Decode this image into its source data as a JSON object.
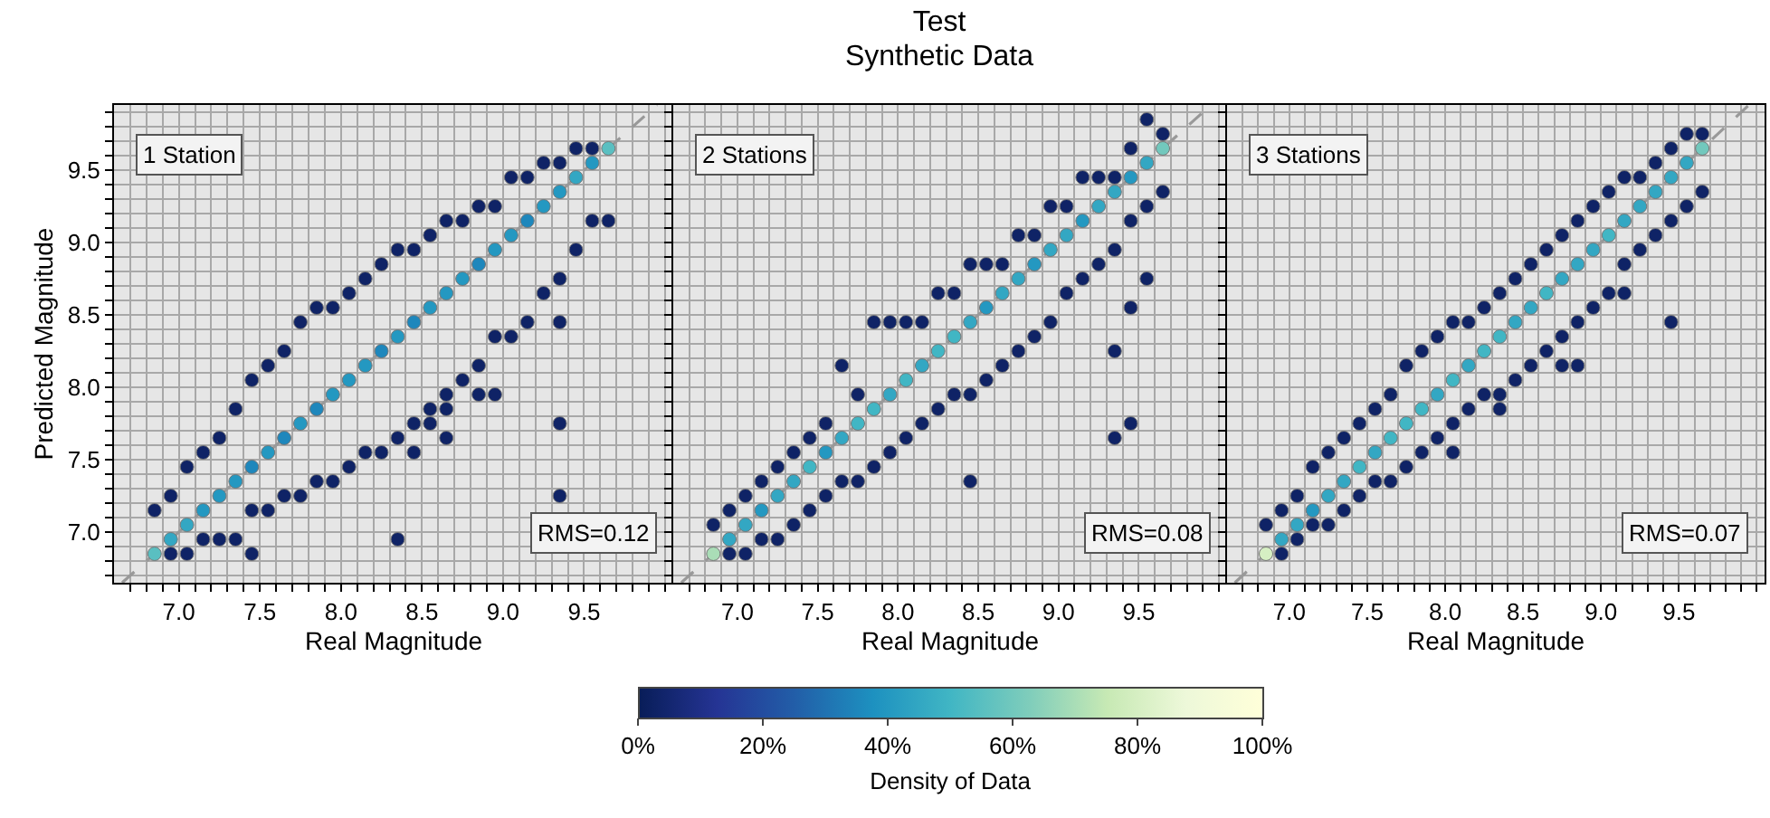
{
  "chart_data": [
    {
      "type": "scatter",
      "xlabel": "Real Magnitude",
      "ylabel": "Predicted Magnitude",
      "annotations": [
        "1 Station",
        "RMS=0.12"
      ],
      "grid": true,
      "marker": "circle",
      "xlim": [
        6.6,
        10.05
      ],
      "ylim": [
        6.65,
        9.95
      ],
      "xticks": [
        {
          "value": 6.7,
          "label": null
        },
        {
          "value": 6.8,
          "label": null
        },
        {
          "value": 6.9,
          "label": null
        },
        {
          "value": 7,
          "label": "7.0"
        },
        {
          "value": 7.1,
          "label": null
        },
        {
          "value": 7.2,
          "label": null
        },
        {
          "value": 7.3,
          "label": null
        },
        {
          "value": 7.4,
          "label": null
        },
        7.5,
        {
          "value": 7.6,
          "label": null
        },
        {
          "value": 7.7,
          "label": null
        },
        {
          "value": 7.8,
          "label": null
        },
        {
          "value": 7.9,
          "label": null
        },
        {
          "value": 8,
          "label": "8.0"
        },
        {
          "value": 8.1,
          "label": null
        },
        {
          "value": 8.2,
          "label": null
        },
        {
          "value": 8.3,
          "label": null
        },
        {
          "value": 8.4,
          "label": null
        },
        8.5,
        {
          "value": 8.6,
          "label": null
        },
        {
          "value": 8.7,
          "label": null
        },
        {
          "value": 8.8,
          "label": null
        },
        {
          "value": 8.9,
          "label": null
        },
        {
          "value": 9,
          "label": "9.0"
        },
        {
          "value": 9.1,
          "label": null
        },
        {
          "value": 9.2,
          "label": null
        },
        {
          "value": 9.3,
          "label": null
        },
        {
          "value": 9.4,
          "label": null
        },
        9.5,
        {
          "value": 9.6,
          "label": null
        },
        {
          "value": 9.7,
          "label": null
        },
        {
          "value": 9.8,
          "label": null
        },
        {
          "value": 9.9,
          "label": null
        },
        {
          "value": 10,
          "label": null
        }
      ],
      "yticks": [
        {
          "value": 6.7,
          "label": null
        },
        {
          "value": 6.8,
          "label": null
        },
        {
          "value": 6.9,
          "label": null
        },
        {
          "value": 7,
          "label": "7.0"
        },
        {
          "value": 7.1,
          "label": null
        },
        {
          "value": 7.2,
          "label": null
        },
        {
          "value": 7.3,
          "label": null
        },
        {
          "value": 7.4,
          "label": null
        },
        7.5,
        {
          "value": 7.6,
          "label": null
        },
        {
          "value": 7.7,
          "label": null
        },
        {
          "value": 7.8,
          "label": null
        },
        {
          "value": 7.9,
          "label": null
        },
        {
          "value": 8,
          "label": "8.0"
        },
        {
          "value": 8.1,
          "label": null
        },
        {
          "value": 8.2,
          "label": null
        },
        {
          "value": 8.3,
          "label": null
        },
        {
          "value": 8.4,
          "label": null
        },
        8.5,
        {
          "value": 8.6,
          "label": null
        },
        {
          "value": 8.7,
          "label": null
        },
        {
          "value": 8.8,
          "label": null
        },
        {
          "value": 8.9,
          "label": null
        },
        {
          "value": 9,
          "label": "9.0"
        },
        {
          "value": 9.1,
          "label": null
        },
        {
          "value": 9.2,
          "label": null
        },
        {
          "value": 9.3,
          "label": null
        },
        {
          "value": 9.4,
          "label": null
        },
        9.5,
        {
          "value": 9.6,
          "label": null
        },
        {
          "value": 9.7,
          "label": null
        },
        {
          "value": 9.8,
          "label": null
        },
        {
          "value": 9.9,
          "label": null
        }
      ],
      "x": [
        6.85,
        6.95,
        7.05,
        7.15,
        7.25,
        7.35,
        7.45,
        7.55,
        7.65,
        7.75,
        7.85,
        7.95,
        8.05,
        8.15,
        8.25,
        8.35,
        8.45,
        8.55,
        8.65,
        8.75,
        8.85,
        8.95,
        9.05,
        9.15,
        9.25,
        9.35,
        9.45,
        9.55,
        9.65
      ],
      "series": [
        {
          "type": "line",
          "x": [
            6.65,
            9.95
          ],
          "values": [
            6.65,
            9.95
          ],
          "color": "#999999",
          "line_style": "dashed",
          "marker": "none"
        },
        {
          "values": [
            7.15,
            7.25,
            7.45,
            7.55,
            7.65,
            7.85,
            8.05,
            8.15,
            8.25,
            8.45,
            8.55,
            8.55,
            8.65,
            8.75,
            8.85,
            8.95,
            8.95,
            9.05,
            9.15,
            9.15,
            9.25,
            9.25,
            9.45,
            9.45,
            9.55,
            9.55,
            9.65,
            9.65,
            null
          ],
          "color": "#0f2366"
        },
        {
          "values": [
            null,
            6.85,
            6.85,
            6.95,
            6.95,
            6.95,
            7.15,
            7.15,
            7.25,
            7.25,
            7.35,
            7.35,
            7.45,
            7.55,
            7.55,
            7.65,
            7.75,
            7.85,
            7.95,
            8.05,
            8.15,
            8.35,
            8.35,
            8.45,
            8.65,
            8.75,
            8.95,
            9.15,
            9.15
          ],
          "color": "#0f2366"
        },
        {
          "values": [
            6.85,
            6.95,
            7.05,
            7.15,
            7.25,
            7.35,
            7.45,
            7.55,
            7.65,
            7.75,
            7.85,
            7.95,
            8.05,
            8.15,
            8.25,
            8.35,
            8.45,
            8.55,
            8.65,
            8.75,
            8.85,
            8.95,
            9.05,
            9.15,
            9.25,
            9.35,
            9.45,
            9.55,
            9.65
          ],
          "colors": [
            "#5abfc1",
            "#33a7c3",
            "#33a7c3",
            "#2498c1",
            "#2498c1",
            "#2498c1",
            "#1e87bc",
            "#2498c1",
            "#1e87bc",
            "#2498c1",
            "#1e87bc",
            "#2498c1",
            "#2498c1",
            "#2498c1",
            "#1e87bc",
            "#2498c1",
            "#1e87bc",
            "#2498c1",
            "#2498c1",
            "#2498c1",
            "#1e87bc",
            "#2498c1",
            "#2498c1",
            "#1e87bc",
            "#2498c1",
            "#2498c1",
            "#33a7c3",
            "#2498c1",
            "#5abfc1"
          ]
        },
        {
          "x": [
            7.45,
            8.35,
            8.45,
            8.55,
            8.65,
            8.65,
            8.85,
            8.95,
            9.35,
            9.35,
            9.35
          ],
          "values": [
            6.85,
            6.95,
            7.55,
            7.75,
            7.65,
            7.85,
            7.95,
            7.95,
            7.75,
            7.25,
            8.45
          ],
          "color": "#0f2366"
        }
      ]
    },
    {
      "type": "scatter",
      "title": "Test",
      "subtitle": "Synthetic Data",
      "xlabel": "Real Magnitude",
      "annotations": [
        "2 Stations",
        "RMS=0.08"
      ],
      "grid": true,
      "marker": "circle",
      "tick_labels": "x",
      "clabel": "Density of Data",
      "clim": [
        0,
        100
      ],
      "cticks": [
        {
          "value": 0,
          "label": "0%"
        },
        {
          "value": 20,
          "label": "20%"
        },
        {
          "value": 40,
          "label": "40%"
        },
        {
          "value": 60,
          "label": "60%"
        },
        {
          "value": 80,
          "label": "80%"
        },
        {
          "value": 100,
          "label": "100%"
        }
      ],
      "xlim": [
        6.6,
        10.05
      ],
      "ylim": [
        6.65,
        9.95
      ],
      "xticks": [
        {
          "value": 6.7,
          "label": null
        },
        {
          "value": 6.8,
          "label": null
        },
        {
          "value": 6.9,
          "label": null
        },
        {
          "value": 7,
          "label": "7.0"
        },
        {
          "value": 7.1,
          "label": null
        },
        {
          "value": 7.2,
          "label": null
        },
        {
          "value": 7.3,
          "label": null
        },
        {
          "value": 7.4,
          "label": null
        },
        7.5,
        {
          "value": 7.6,
          "label": null
        },
        {
          "value": 7.7,
          "label": null
        },
        {
          "value": 7.8,
          "label": null
        },
        {
          "value": 7.9,
          "label": null
        },
        {
          "value": 8,
          "label": "8.0"
        },
        {
          "value": 8.1,
          "label": null
        },
        {
          "value": 8.2,
          "label": null
        },
        {
          "value": 8.3,
          "label": null
        },
        {
          "value": 8.4,
          "label": null
        },
        8.5,
        {
          "value": 8.6,
          "label": null
        },
        {
          "value": 8.7,
          "label": null
        },
        {
          "value": 8.8,
          "label": null
        },
        {
          "value": 8.9,
          "label": null
        },
        {
          "value": 9,
          "label": "9.0"
        },
        {
          "value": 9.1,
          "label": null
        },
        {
          "value": 9.2,
          "label": null
        },
        {
          "value": 9.3,
          "label": null
        },
        {
          "value": 9.4,
          "label": null
        },
        9.5,
        {
          "value": 9.6,
          "label": null
        },
        {
          "value": 9.7,
          "label": null
        },
        {
          "value": 9.8,
          "label": null
        },
        {
          "value": 9.9,
          "label": null
        },
        {
          "value": 10,
          "label": null
        }
      ],
      "yticks": [
        {
          "value": 6.7,
          "label": null
        },
        {
          "value": 6.8,
          "label": null
        },
        {
          "value": 6.9,
          "label": null
        },
        {
          "value": 7,
          "label": null
        },
        {
          "value": 7.1,
          "label": null
        },
        {
          "value": 7.2,
          "label": null
        },
        {
          "value": 7.3,
          "label": null
        },
        {
          "value": 7.4,
          "label": null
        },
        {
          "value": 7.5,
          "label": null
        },
        {
          "value": 7.6,
          "label": null
        },
        {
          "value": 7.7,
          "label": null
        },
        {
          "value": 7.8,
          "label": null
        },
        {
          "value": 7.9,
          "label": null
        },
        {
          "value": 8,
          "label": null
        },
        {
          "value": 8.1,
          "label": null
        },
        {
          "value": 8.2,
          "label": null
        },
        {
          "value": 8.3,
          "label": null
        },
        {
          "value": 8.4,
          "label": null
        },
        {
          "value": 8.5,
          "label": null
        },
        {
          "value": 8.6,
          "label": null
        },
        {
          "value": 8.7,
          "label": null
        },
        {
          "value": 8.8,
          "label": null
        },
        {
          "value": 8.9,
          "label": null
        },
        {
          "value": 9,
          "label": null
        },
        {
          "value": 9.1,
          "label": null
        },
        {
          "value": 9.2,
          "label": null
        },
        {
          "value": 9.3,
          "label": null
        },
        {
          "value": 9.4,
          "label": null
        },
        {
          "value": 9.5,
          "label": null
        },
        {
          "value": 9.6,
          "label": null
        },
        {
          "value": 9.7,
          "label": null
        },
        {
          "value": 9.8,
          "label": null
        },
        {
          "value": 9.9,
          "label": null
        }
      ],
      "x": [
        6.85,
        6.95,
        7.05,
        7.15,
        7.25,
        7.35,
        7.45,
        7.55,
        7.65,
        7.75,
        7.85,
        7.95,
        8.05,
        8.15,
        8.25,
        8.35,
        8.45,
        8.55,
        8.65,
        8.75,
        8.85,
        8.95,
        9.05,
        9.15,
        9.25,
        9.35,
        9.45,
        9.55,
        9.65
      ],
      "series": [
        {
          "type": "line",
          "x": [
            6.65,
            9.95
          ],
          "values": [
            6.65,
            9.95
          ],
          "color": "#999999",
          "line_style": "dashed",
          "marker": "none"
        },
        {
          "values": [
            7.05,
            7.15,
            7.25,
            7.35,
            7.45,
            7.55,
            7.65,
            7.75,
            8.15,
            7.95,
            8.45,
            8.45,
            8.45,
            8.45,
            8.65,
            8.65,
            8.85,
            8.85,
            8.85,
            9.05,
            9.05,
            9.25,
            9.25,
            9.45,
            9.45,
            9.45,
            9.65,
            9.85,
            9.75
          ],
          "cvalues": [
            3,
            3,
            3,
            3,
            3,
            3,
            3,
            3,
            3,
            3,
            3,
            3,
            3,
            3,
            3,
            3,
            3,
            3,
            3,
            3,
            3,
            3,
            3,
            3,
            3,
            3,
            3,
            3,
            3
          ]
        },
        {
          "values": [
            null,
            6.85,
            6.85,
            6.95,
            6.95,
            7.05,
            7.15,
            7.25,
            7.35,
            7.35,
            7.45,
            7.55,
            7.65,
            7.75,
            7.85,
            7.95,
            7.95,
            8.05,
            8.15,
            8.25,
            8.35,
            8.45,
            8.65,
            8.75,
            8.85,
            8.95,
            9.15,
            9.25,
            9.35
          ],
          "cvalues": [
            null,
            3,
            3,
            3,
            3,
            3,
            3,
            3,
            3,
            3,
            3,
            3,
            3,
            3,
            3,
            3,
            3,
            3,
            3,
            3,
            3,
            3,
            3,
            3,
            3,
            3,
            3,
            3,
            3
          ]
        },
        {
          "values": [
            6.85,
            6.95,
            7.05,
            7.15,
            7.25,
            7.35,
            7.45,
            7.55,
            7.65,
            7.75,
            7.85,
            7.95,
            8.05,
            8.15,
            8.25,
            8.35,
            8.45,
            8.55,
            8.65,
            8.75,
            8.85,
            8.95,
            9.05,
            9.15,
            9.25,
            9.35,
            9.45,
            9.55,
            9.65
          ],
          "colors": [
            "#aaddb7",
            "#33a7c3",
            "#33a7c3",
            "#2498c1",
            "#33a7c3",
            "#33a7c3",
            "#41b6c4",
            "#2498c1",
            "#33a7c3",
            "#41b6c4",
            "#41b6c4",
            "#33a7c3",
            "#41b6c4",
            "#33a7c3",
            "#41b6c4",
            "#41b6c4",
            "#33a7c3",
            "#2498c1",
            "#33a7c3",
            "#33a7c3",
            "#2498c1",
            "#33a7c3",
            "#33a7c3",
            "#2498c1",
            "#33a7c3",
            "#33a7c3",
            "#2498c1",
            "#33a7c3",
            "#72c8bd"
          ]
        },
        {
          "x": [
            8.45,
            9.35,
            9.45,
            9.35,
            9.45,
            9.55
          ],
          "values": [
            7.35,
            7.65,
            7.75,
            8.25,
            8.55,
            8.75
          ],
          "cvalues": [
            3,
            3,
            3,
            3,
            3,
            3
          ]
        }
      ]
    },
    {
      "type": "scatter",
      "xlabel": "Real Magnitude",
      "annotations": [
        "3 Stations",
        "RMS=0.07"
      ],
      "grid": true,
      "marker": "circle",
      "tick_labels": "x",
      "xlim": [
        6.6,
        10.05
      ],
      "ylim": [
        6.65,
        9.95
      ],
      "xticks": [
        {
          "value": 6.7,
          "label": null
        },
        {
          "value": 6.8,
          "label": null
        },
        {
          "value": 6.9,
          "label": null
        },
        {
          "value": 7,
          "label": "7.0"
        },
        {
          "value": 7.1,
          "label": null
        },
        {
          "value": 7.2,
          "label": null
        },
        {
          "value": 7.3,
          "label": null
        },
        {
          "value": 7.4,
          "label": null
        },
        7.5,
        {
          "value": 7.6,
          "label": null
        },
        {
          "value": 7.7,
          "label": null
        },
        {
          "value": 7.8,
          "label": null
        },
        {
          "value": 7.9,
          "label": null
        },
        {
          "value": 8,
          "label": "8.0"
        },
        {
          "value": 8.1,
          "label": null
        },
        {
          "value": 8.2,
          "label": null
        },
        {
          "value": 8.3,
          "label": null
        },
        {
          "value": 8.4,
          "label": null
        },
        8.5,
        {
          "value": 8.6,
          "label": null
        },
        {
          "value": 8.7,
          "label": null
        },
        {
          "value": 8.8,
          "label": null
        },
        {
          "value": 8.9,
          "label": null
        },
        {
          "value": 9,
          "label": "9.0"
        },
        {
          "value": 9.1,
          "label": null
        },
        {
          "value": 9.2,
          "label": null
        },
        {
          "value": 9.3,
          "label": null
        },
        {
          "value": 9.4,
          "label": null
        },
        9.5,
        {
          "value": 9.6,
          "label": null
        },
        {
          "value": 9.7,
          "label": null
        },
        {
          "value": 9.8,
          "label": null
        },
        {
          "value": 9.9,
          "label": null
        },
        {
          "value": 10,
          "label": null
        }
      ],
      "yticks": [
        {
          "value": 6.7,
          "label": null
        },
        {
          "value": 6.8,
          "label": null
        },
        {
          "value": 6.9,
          "label": null
        },
        {
          "value": 7,
          "label": null
        },
        {
          "value": 7.1,
          "label": null
        },
        {
          "value": 7.2,
          "label": null
        },
        {
          "value": 7.3,
          "label": null
        },
        {
          "value": 7.4,
          "label": null
        },
        {
          "value": 7.5,
          "label": null
        },
        {
          "value": 7.6,
          "label": null
        },
        {
          "value": 7.7,
          "label": null
        },
        {
          "value": 7.8,
          "label": null
        },
        {
          "value": 7.9,
          "label": null
        },
        {
          "value": 8,
          "label": null
        },
        {
          "value": 8.1,
          "label": null
        },
        {
          "value": 8.2,
          "label": null
        },
        {
          "value": 8.3,
          "label": null
        },
        {
          "value": 8.4,
          "label": null
        },
        {
          "value": 8.5,
          "label": null
        },
        {
          "value": 8.6,
          "label": null
        },
        {
          "value": 8.7,
          "label": null
        },
        {
          "value": 8.8,
          "label": null
        },
        {
          "value": 8.9,
          "label": null
        },
        {
          "value": 9,
          "label": null
        },
        {
          "value": 9.1,
          "label": null
        },
        {
          "value": 9.2,
          "label": null
        },
        {
          "value": 9.3,
          "label": null
        },
        {
          "value": 9.4,
          "label": null
        },
        {
          "value": 9.5,
          "label": null
        },
        {
          "value": 9.6,
          "label": null
        },
        {
          "value": 9.7,
          "label": null
        },
        {
          "value": 9.8,
          "label": null
        },
        {
          "value": 9.9,
          "label": null
        }
      ],
      "x": [
        6.85,
        6.95,
        7.05,
        7.15,
        7.25,
        7.35,
        7.45,
        7.55,
        7.65,
        7.75,
        7.85,
        7.95,
        8.05,
        8.15,
        8.25,
        8.35,
        8.45,
        8.55,
        8.65,
        8.75,
        8.85,
        8.95,
        9.05,
        9.15,
        9.25,
        9.35,
        9.45,
        9.55,
        9.65
      ],
      "series": [
        {
          "type": "line",
          "x": [
            6.65,
            9.95
          ],
          "values": [
            6.65,
            9.95
          ],
          "color": "#999999",
          "line_style": "dashed",
          "marker": "none"
        },
        {
          "values": [
            7.05,
            7.15,
            7.25,
            7.45,
            7.55,
            7.65,
            7.75,
            7.85,
            7.95,
            8.15,
            8.25,
            8.35,
            8.45,
            8.45,
            8.55,
            8.65,
            8.75,
            8.85,
            8.95,
            9.05,
            9.15,
            9.25,
            9.35,
            9.45,
            9.45,
            9.55,
            9.65,
            9.75,
            9.75
          ],
          "color": "#0f2366"
        },
        {
          "values": [
            null,
            6.85,
            6.95,
            7.05,
            7.05,
            7.15,
            7.25,
            7.35,
            7.35,
            7.45,
            7.55,
            7.65,
            7.75,
            7.85,
            7.95,
            7.95,
            8.05,
            8.15,
            8.25,
            8.35,
            8.45,
            8.55,
            8.65,
            8.85,
            8.95,
            9.05,
            9.15,
            9.25,
            9.35
          ],
          "color": "#0f2366"
        },
        {
          "values": [
            6.85,
            6.95,
            7.05,
            7.15,
            7.25,
            7.35,
            7.45,
            7.55,
            7.65,
            7.75,
            7.85,
            7.95,
            8.05,
            8.15,
            8.25,
            8.35,
            8.45,
            8.55,
            8.65,
            8.75,
            8.85,
            8.95,
            9.05,
            9.15,
            9.25,
            9.35,
            9.45,
            9.55,
            9.65
          ],
          "colors": [
            "#d6efc3",
            "#33a7c3",
            "#33a7c3",
            "#2498c1",
            "#33a7c3",
            "#33a7c3",
            "#41b6c4",
            "#33a7c3",
            "#41b6c4",
            "#41b6c4",
            "#41b6c4",
            "#33a7c3",
            "#41b6c4",
            "#33a7c3",
            "#41b6c4",
            "#41b6c4",
            "#33a7c3",
            "#33a7c3",
            "#41b6c4",
            "#33a7c3",
            "#33a7c3",
            "#33a7c3",
            "#41b6c4",
            "#33a7c3",
            "#33a7c3",
            "#33a7c3",
            "#33a7c3",
            "#33a7c3",
            "#72c8bd"
          ]
        },
        {
          "x": [
            8.05,
            8.35,
            8.75,
            8.85,
            9.45,
            9.15
          ],
          "values": [
            7.55,
            7.85,
            8.15,
            8.15,
            8.45,
            8.65
          ],
          "color": "#0f2366"
        }
      ]
    }
  ]
}
